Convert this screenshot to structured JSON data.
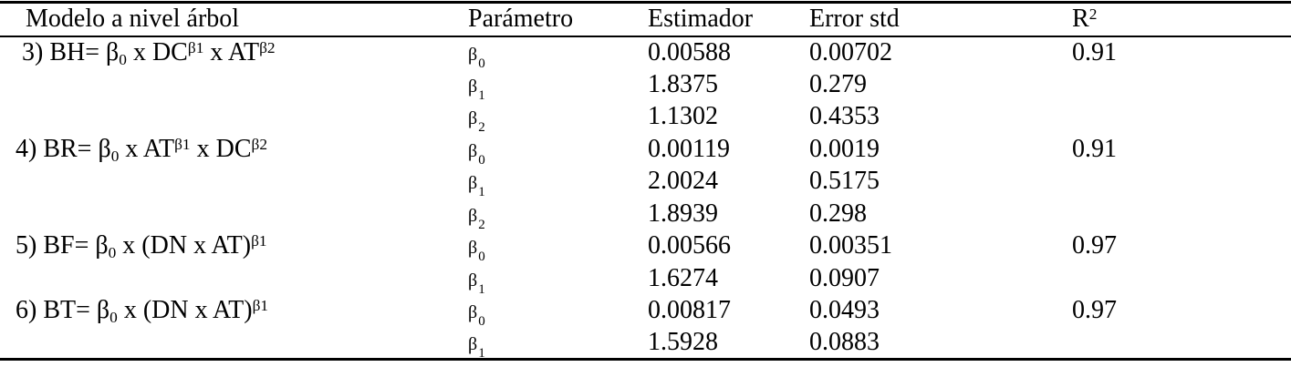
{
  "table": {
    "colors": {
      "text": "#000000",
      "rules": "#000000",
      "background": "#ffffff"
    },
    "columns": [
      {
        "id": "modelo",
        "label_segments": [
          {
            "text": "Modelo a nivel árbol"
          }
        ]
      },
      {
        "id": "parametro",
        "label_segments": [
          {
            "text": "Parámetro"
          }
        ]
      },
      {
        "id": "estimador",
        "label_segments": [
          {
            "text": "Estimador"
          }
        ]
      },
      {
        "id": "error_std",
        "label_segments": [
          {
            "text": "Error std"
          }
        ]
      },
      {
        "id": "r2",
        "label_segments": [
          {
            "text": "R"
          },
          {
            "text": "2",
            "style": "sup"
          }
        ]
      }
    ],
    "rows": [
      {
        "model": [
          {
            "text": " 3) BH= β"
          },
          {
            "text": "0",
            "style": "sub"
          },
          {
            "text": " x DC"
          },
          {
            "text": "β1",
            "style": "sup"
          },
          {
            "text": " x AT"
          },
          {
            "text": "β2",
            "style": "sup"
          }
        ],
        "param": {
          "base": "β",
          "sub": "0"
        },
        "estimador": "0.00588",
        "error_std": "0.00702",
        "r2": "0.91"
      },
      {
        "model": [],
        "param": {
          "base": "β",
          "sub": "1"
        },
        "estimador": "1.8375",
        "error_std": "0.279",
        "r2": ""
      },
      {
        "model": [],
        "param": {
          "base": "β",
          "sub": "2"
        },
        "estimador": "1.1302",
        "error_std": "0.4353",
        "r2": ""
      },
      {
        "model": [
          {
            "text": "4) BR= β"
          },
          {
            "text": "0",
            "style": "sub"
          },
          {
            "text": " x AT"
          },
          {
            "text": "β1",
            "style": "sup"
          },
          {
            "text": " x DC"
          },
          {
            "text": "β2",
            "style": "sup"
          }
        ],
        "param": {
          "base": "β",
          "sub": "0"
        },
        "estimador": "0.00119",
        "error_std": "0.0019",
        "r2": "0.91"
      },
      {
        "model": [],
        "param": {
          "base": "β",
          "sub": "1"
        },
        "estimador": "2.0024",
        "error_std": "0.5175",
        "r2": ""
      },
      {
        "model": [],
        "param": {
          "base": "β",
          "sub": "2"
        },
        "estimador": "1.8939",
        "error_std": "0.298",
        "r2": ""
      },
      {
        "model": [
          {
            "text": "5) BF= β"
          },
          {
            "text": "0",
            "style": "sub"
          },
          {
            "text": " x (DN x AT)"
          },
          {
            "text": "β1",
            "style": "sup"
          }
        ],
        "param": {
          "base": "β",
          "sub": "0"
        },
        "estimador": "0.00566",
        "error_std": "0.00351",
        "r2": "0.97"
      },
      {
        "model": [],
        "param": {
          "base": "β",
          "sub": "1"
        },
        "estimador": "1.6274",
        "error_std": "0.0907",
        "r2": ""
      },
      {
        "model": [
          {
            "text": "6) BT= β"
          },
          {
            "text": "0",
            "style": "sub"
          },
          {
            "text": " x (DN x AT)"
          },
          {
            "text": "β1",
            "style": "sup"
          }
        ],
        "param": {
          "base": "β",
          "sub": "0"
        },
        "estimador": "0.00817",
        "error_std": "0.0493",
        "r2": "0.97"
      },
      {
        "model": [],
        "param": {
          "base": "β",
          "sub": "1"
        },
        "estimador": "1.5928",
        "error_std": "0.0883",
        "r2": ""
      }
    ]
  }
}
